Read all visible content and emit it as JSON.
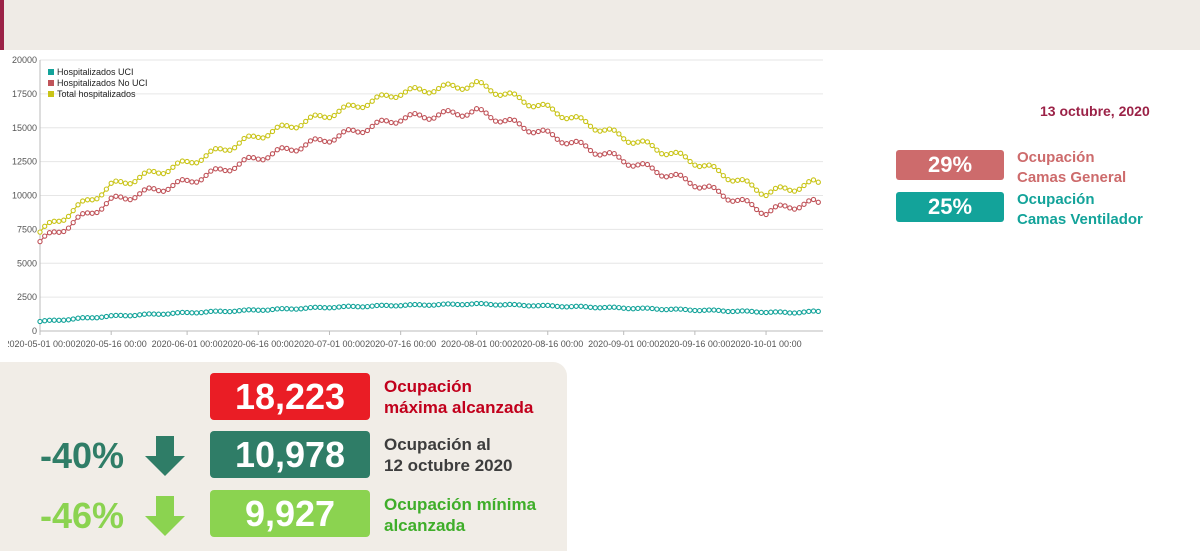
{
  "header": {
    "date": "13 octubre, 2020"
  },
  "occupancy": [
    {
      "percent": "29%",
      "label_line1": "Ocupación",
      "label_line2": "Camas General",
      "color": "#cd6b6c"
    },
    {
      "percent": "25%",
      "label_line1": "Ocupación",
      "label_line2": "Camas Ventilador",
      "color": "#13a39a"
    }
  ],
  "stats": {
    "max": {
      "value": "18,223",
      "label_line1": "Ocupación",
      "label_line2": "máxima alcanzada",
      "color": "#ea1d25"
    },
    "current": {
      "change": "-40%",
      "value": "10,978",
      "label_line1": "Ocupación al",
      "label_line2": "12 octubre 2020",
      "color": "#2f7d67"
    },
    "min": {
      "change": "-46%",
      "value": "9,927",
      "label_line1": "Ocupación mínima",
      "label_line2": "alcanzada",
      "color": "#8bd350"
    }
  },
  "chart_data": {
    "type": "line",
    "x_start": "2020-05-01",
    "x_end": "2020-10-12",
    "x_ticks": [
      "2020-05-01 00:00",
      "2020-05-16 00:00",
      "2020-06-01 00:00",
      "2020-06-16 00:00",
      "2020-07-01 00:00",
      "2020-07-16 00:00",
      "2020-08-01 00:00",
      "2020-08-16 00:00",
      "2020-09-01 00:00",
      "2020-09-16 00:00",
      "2020-10-01 00:00"
    ],
    "y_ticks": [
      0,
      2500,
      5000,
      7500,
      10000,
      12500,
      15000,
      17500,
      20000
    ],
    "ylim": [
      0,
      20000
    ],
    "grid": true,
    "legend_position": "top-left",
    "anchor_dates": [
      "2020-05-01",
      "2020-05-16",
      "2020-06-01",
      "2020-06-16",
      "2020-07-01",
      "2020-07-16",
      "2020-08-01",
      "2020-08-16",
      "2020-09-01",
      "2020-09-16",
      "2020-10-01",
      "2020-10-06",
      "2020-10-12"
    ],
    "series": [
      {
        "name": "Hospitalizados UCI",
        "color": "#13a39a",
        "values": [
          700,
          1100,
          1350,
          1550,
          1750,
          1900,
          2000,
          1850,
          1700,
          1550,
          1400,
          1350,
          1450
        ]
      },
      {
        "name": "Hospitalizados No UCI",
        "color": "#c0545a",
        "values": [
          6600,
          9600,
          11000,
          12800,
          14200,
          15700,
          16200,
          14500,
          12600,
          10900,
          8800,
          9200,
          9500
        ]
      },
      {
        "name": "Total hospitalizados",
        "color": "#c9c418",
        "values": [
          7300,
          10700,
          12400,
          14400,
          16000,
          17600,
          18200,
          16400,
          14300,
          12500,
          10200,
          10500,
          10978
        ]
      }
    ]
  }
}
